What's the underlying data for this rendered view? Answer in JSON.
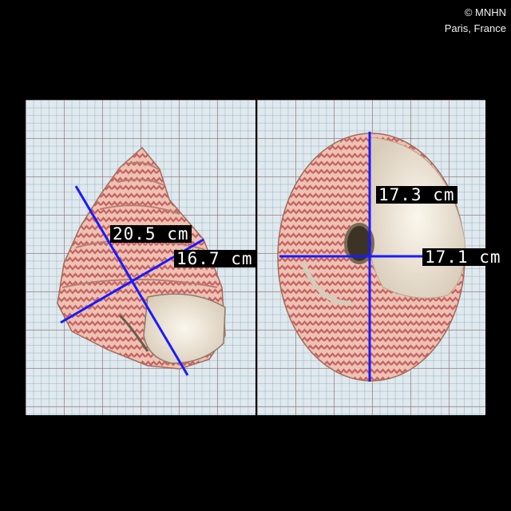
{
  "credit": {
    "line1": "© MNHN",
    "line2": "Paris, France"
  },
  "specimen": {
    "left_view": "apertural view (trochid shell)",
    "right_view": "basal view (umbilical side)"
  },
  "measurements": [
    {
      "label": "20.5 cm"
    },
    {
      "label": "16.7 cm"
    },
    {
      "label": "17.3 cm"
    },
    {
      "label": "17.1 cm"
    }
  ],
  "colors": {
    "background": "#000000",
    "grid_paper": "#dfe9ee",
    "measure_line": "#1a1aff",
    "label_bg": "#000000",
    "label_text": "#ffffff",
    "shell_base": "#e8b6a8",
    "shell_pattern": "#c9605f"
  }
}
